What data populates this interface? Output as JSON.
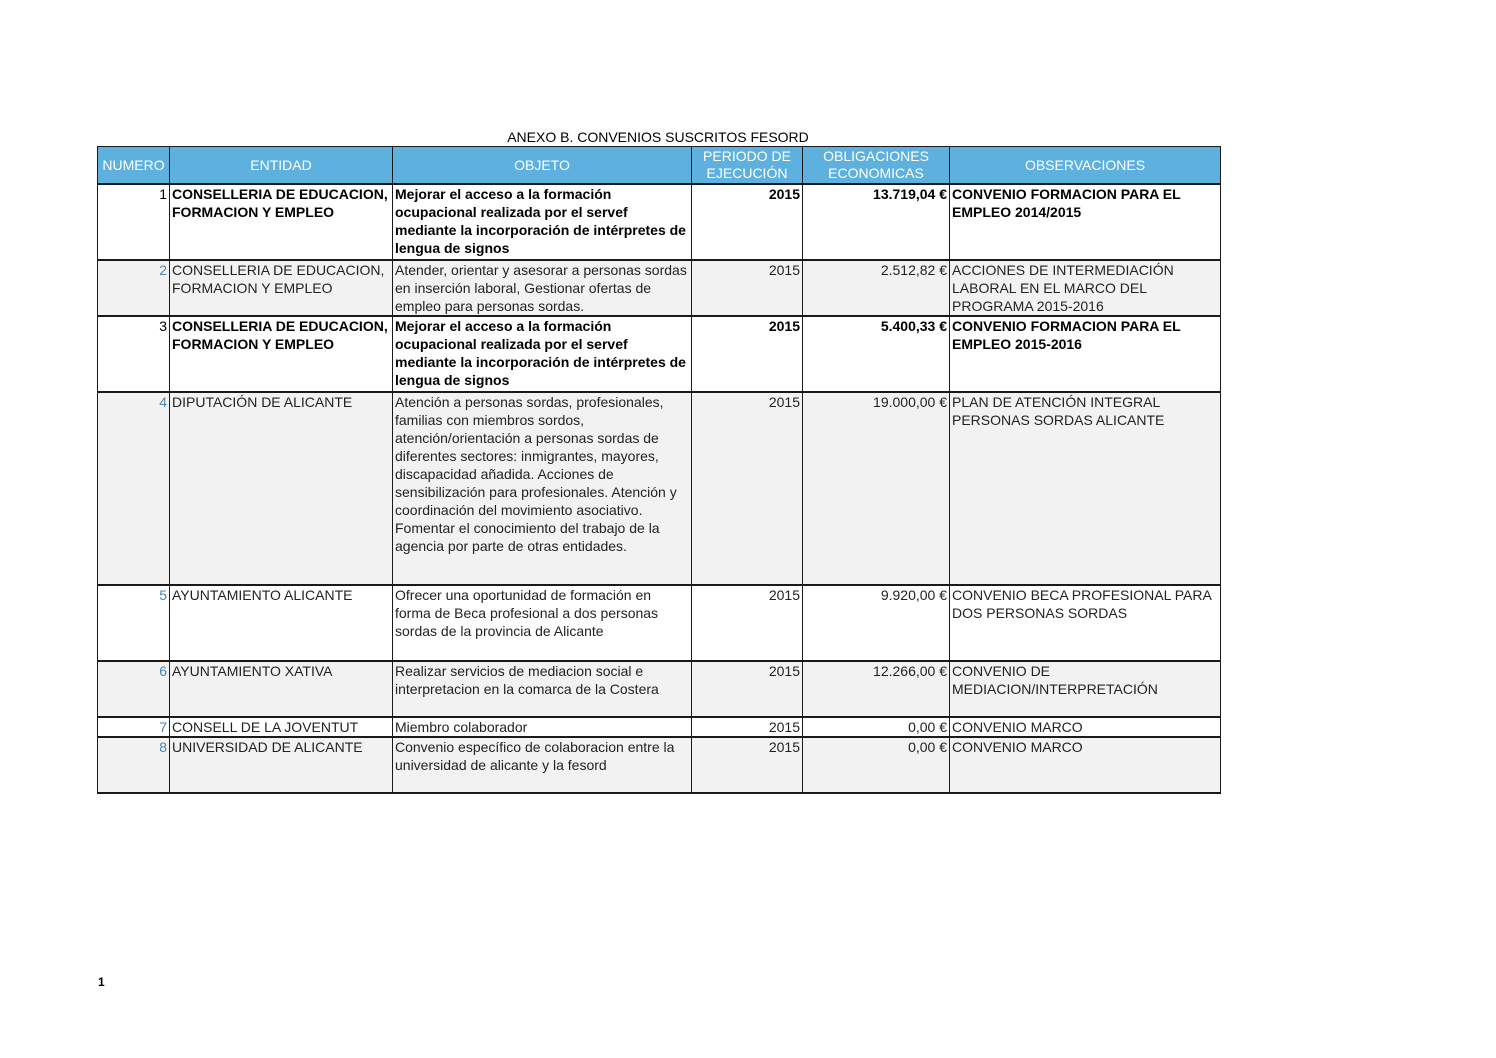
{
  "title": "ANEXO B. CONVENIOS SUSCRITOS FESORD",
  "headers": [
    "NUMERO",
    "ENTIDAD",
    "OBJETO",
    "PERIODO DE EJECUCIÓN",
    "OBLIGACIONES ECONOMICAS",
    "OBSERVACIONES"
  ],
  "rows": [
    {
      "numero": "1",
      "entidad": "CONSELLERIA DE EDUCACION, FORMACION Y EMPLEO",
      "objeto": "Mejorar el acceso a la formación ocupacional realizada por el servef mediante la incorporación de intérpretes de lengua de signos",
      "periodo": "2015",
      "obligaciones": "13.719,04 €",
      "observaciones": "CONVENIO FORMACION PARA EL EMPLEO 2014/2015"
    },
    {
      "numero": "2",
      "entidad": "CONSELLERIA DE EDUCACION, FORMACION Y EMPLEO",
      "objeto": "Atender, orientar y asesorar a personas sordas en inserción laboral,  Gestionar ofertas de empleo para personas sordas.",
      "periodo": "2015",
      "obligaciones": "2.512,82 €",
      "observaciones": "ACCIONES DE INTERMEDIACIÓN LABORAL EN EL MARCO DEL PROGRAMA 2015-2016"
    },
    {
      "numero": "3",
      "entidad": "CONSELLERIA DE EDUCACION, FORMACION Y EMPLEO",
      "objeto": "Mejorar el acceso a la formación ocupacional realizada por el servef mediante la incorporación de intérpretes de lengua de signos",
      "periodo": "2015",
      "obligaciones": "5.400,33 €",
      "observaciones": "CONVENIO FORMACION PARA EL EMPLEO 2015-2016"
    },
    {
      "numero": "4",
      "entidad": "DIPUTACIÓN DE ALICANTE",
      "objeto": "Atención a personas sordas, profesionales, familias con miembros sordos, atención/orientación a personas sordas de diferentes sectores: inmigrantes, mayores, discapacidad añadida. Acciones de sensibilización para profesionales. Atención y coordinación del movimiento asociativo. Fomentar el conocimiento del trabajo de la agencia por parte de otras entidades.",
      "periodo": "2015",
      "obligaciones": "19.000,00 €",
      "observaciones": "PLAN DE ATENCIÓN INTEGRAL PERSONAS SORDAS ALICANTE"
    },
    {
      "numero": "5",
      "entidad": "AYUNTAMIENTO ALICANTE",
      "objeto": "Ofrecer una oportunidad de formación en forma de Beca profesional a dos personas sordas de la provincia de Alicante",
      "periodo": "2015",
      "obligaciones": "9.920,00 €",
      "observaciones": "CONVENIO BECA PROFESIONAL PARA DOS PERSONAS SORDAS"
    },
    {
      "numero": "6",
      "entidad": "AYUNTAMIENTO XATIVA",
      "objeto": "Realizar servicios de mediacion social e interpretacion en la comarca de la Costera",
      "periodo": "2015",
      "obligaciones": "12.266,00 €",
      "observaciones": "CONVENIO DE MEDIACION/INTERPRETACIÓN"
    },
    {
      "numero": "7",
      "entidad": "CONSELL DE LA JOVENTUT",
      "objeto": "Miembro colaborador",
      "periodo": "2015",
      "obligaciones": "0,00 €",
      "observaciones": "CONVENIO MARCO"
    },
    {
      "numero": "8",
      "entidad": "UNIVERSIDAD DE ALICANTE",
      "objeto": "Convenio específico de colaboracion entre la universidad de alicante y la fesord",
      "periodo": "2015",
      "obligaciones": "0,00 €",
      "observaciones": "CONVENIO MARCO"
    }
  ],
  "page_number": "1"
}
